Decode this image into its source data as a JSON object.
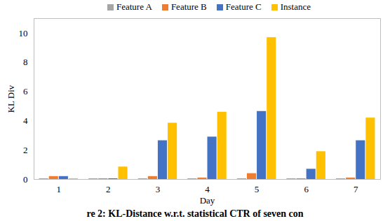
{
  "chart_data": {
    "type": "bar",
    "caption": "re 2: KL-Distance w.r.t. statistical CTR of seven con",
    "x_label": "Day",
    "y_label": "KL Div",
    "categories": [
      "1",
      "2",
      "3",
      "4",
      "5",
      "6",
      "7"
    ],
    "series": [
      {
        "name": "Feature A",
        "color": "#a5a5a5",
        "values": [
          0.05,
          0.05,
          0.05,
          0.05,
          0.05,
          0.05,
          0.05
        ]
      },
      {
        "name": "Feature B",
        "color": "#ed7d31",
        "values": [
          0.2,
          0.05,
          0.2,
          0.1,
          0.4,
          0.05,
          0.1
        ]
      },
      {
        "name": "Feature C",
        "color": "#4472c4",
        "values": [
          0.2,
          0.05,
          2.65,
          2.9,
          4.65,
          0.7,
          2.65
        ]
      },
      {
        "name": "Instance",
        "color": "#ffc000",
        "values": [
          0.05,
          0.85,
          3.85,
          4.6,
          9.7,
          1.9,
          4.2
        ]
      }
    ],
    "ylim": [
      0,
      11
    ],
    "yticks": [
      0,
      2,
      4,
      6,
      8,
      10
    ],
    "grid": false,
    "legend": "top"
  }
}
